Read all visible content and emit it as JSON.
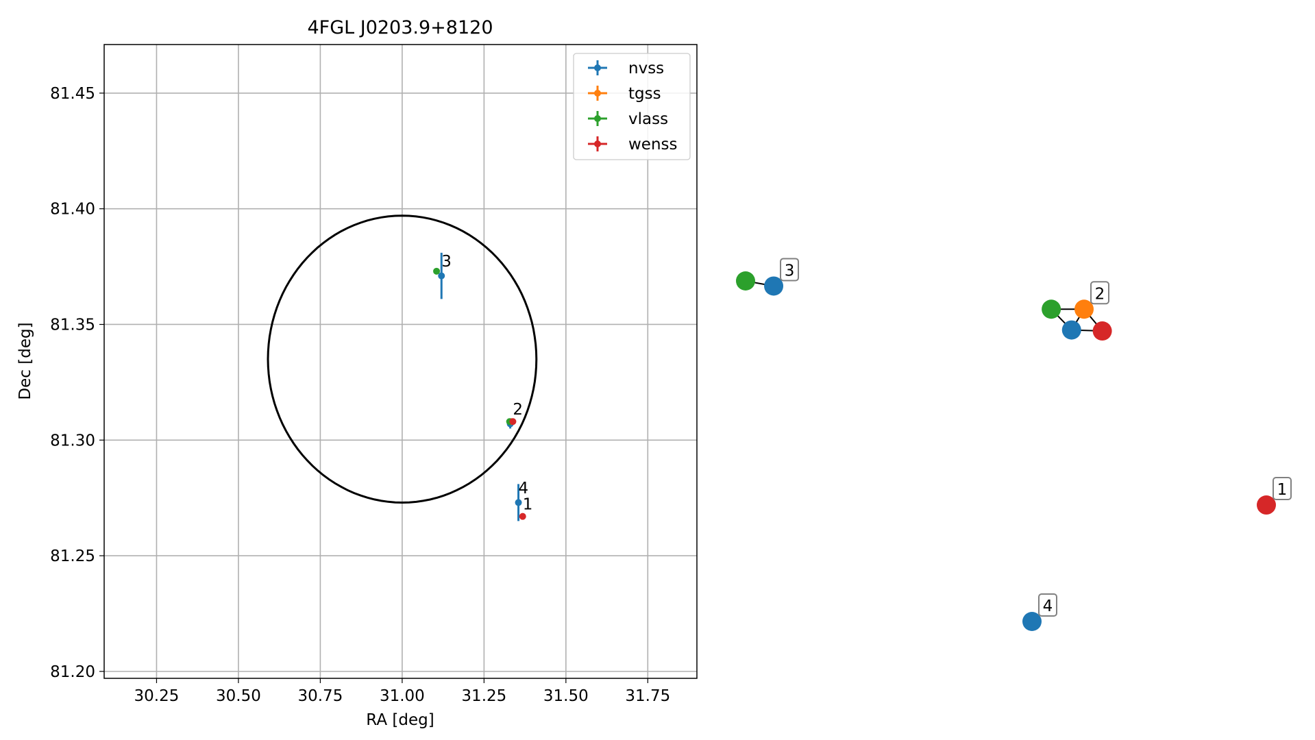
{
  "colors": {
    "nvss": "#1f77b4",
    "tgss": "#ff7f0e",
    "vlass": "#2ca02c",
    "wenss": "#d62728",
    "ellipse": "#000000",
    "grid": "#b0b0b0"
  },
  "chart_data": [
    {
      "type": "scatter",
      "title": "4FGL J0203.9+8120",
      "xlabel": "RA [deg]",
      "ylabel": "Dec [deg]",
      "xlim": [
        30.09,
        31.9
      ],
      "ylim": [
        81.197,
        81.471
      ],
      "xticks": [
        "30.25",
        "30.50",
        "30.75",
        "31.00",
        "31.25",
        "31.50",
        "31.75"
      ],
      "yticks": [
        "81.20",
        "81.25",
        "81.30",
        "81.35",
        "81.40",
        "81.45"
      ],
      "grid": true,
      "legend_position": "upper right",
      "legend": [
        "nvss",
        "tgss",
        "vlass",
        "wenss"
      ],
      "ellipse": {
        "center_ra": 31.0,
        "center_dec": 81.335,
        "semi_axes": [
          0.41,
          0.062
        ],
        "tilt_deg": -36
      },
      "series": [
        {
          "name": "nvss",
          "color_key": "nvss",
          "points": [
            {
              "ra": 31.12,
              "dec": 81.371,
              "ra_err": 0.004,
              "dec_err": 0.01
            },
            {
              "ra": 31.33,
              "dec": 81.307,
              "ra_err": 0.003,
              "dec_err": 0.002
            },
            {
              "ra": 31.355,
              "dec": 81.273,
              "ra_err": 0.004,
              "dec_err": 0.008
            }
          ]
        },
        {
          "name": "tgss",
          "color_key": "tgss",
          "points": [
            {
              "ra": 31.333,
              "dec": 81.308,
              "ra_err": 0.002,
              "dec_err": 0.001
            }
          ]
        },
        {
          "name": "vlass",
          "color_key": "vlass",
          "points": [
            {
              "ra": 31.105,
              "dec": 81.373,
              "ra_err": 0.0,
              "dec_err": 0.0
            },
            {
              "ra": 31.328,
              "dec": 81.308,
              "ra_err": 0.0,
              "dec_err": 0.0
            }
          ]
        },
        {
          "name": "wenss",
          "color_key": "wenss",
          "points": [
            {
              "ra": 31.338,
              "dec": 81.308,
              "ra_err": 0.0,
              "dec_err": 0.0
            },
            {
              "ra": 31.368,
              "dec": 81.267,
              "ra_err": 0.0,
              "dec_err": 0.0
            }
          ]
        }
      ],
      "annotations": [
        {
          "label": "3",
          "ra": 31.12,
          "dec": 81.375
        },
        {
          "label": "2",
          "ra": 31.338,
          "dec": 81.311
        },
        {
          "label": "4",
          "ra": 31.355,
          "dec": 81.277
        },
        {
          "label": "1",
          "ra": 31.368,
          "dec": 81.27
        }
      ]
    },
    {
      "type": "network",
      "nodes": [
        {
          "id": "3-vlass",
          "group": "3",
          "catalog": "vlass",
          "x": 0.0,
          "y": 0.0
        },
        {
          "id": "3-nvss",
          "group": "3",
          "catalog": "nvss",
          "x": 0.054,
          "y": 0.015
        },
        {
          "id": "2-vlass",
          "group": "2",
          "catalog": "vlass",
          "x": 0.587,
          "y": 0.083
        },
        {
          "id": "2-tgss",
          "group": "2",
          "catalog": "tgss",
          "x": 0.65,
          "y": 0.083
        },
        {
          "id": "2-nvss",
          "group": "2",
          "catalog": "nvss",
          "x": 0.626,
          "y": 0.144
        },
        {
          "id": "2-wenss",
          "group": "2",
          "catalog": "wenss",
          "x": 0.685,
          "y": 0.147
        },
        {
          "id": "1-wenss",
          "group": "1",
          "catalog": "wenss",
          "x": 1.0,
          "y": 0.658
        },
        {
          "id": "4-nvss",
          "group": "4",
          "catalog": "nvss",
          "x": 0.55,
          "y": 1.0
        }
      ],
      "edges": [
        [
          "3-vlass",
          "3-nvss"
        ],
        [
          "2-vlass",
          "2-tgss"
        ],
        [
          "2-vlass",
          "2-nvss"
        ],
        [
          "2-tgss",
          "2-nvss"
        ],
        [
          "2-tgss",
          "2-wenss"
        ],
        [
          "2-nvss",
          "2-wenss"
        ]
      ],
      "labels": [
        {
          "text": "3",
          "node": "3-nvss"
        },
        {
          "text": "2",
          "node": "2-tgss"
        },
        {
          "text": "1",
          "node": "1-wenss"
        },
        {
          "text": "4",
          "node": "4-nvss"
        }
      ]
    }
  ]
}
